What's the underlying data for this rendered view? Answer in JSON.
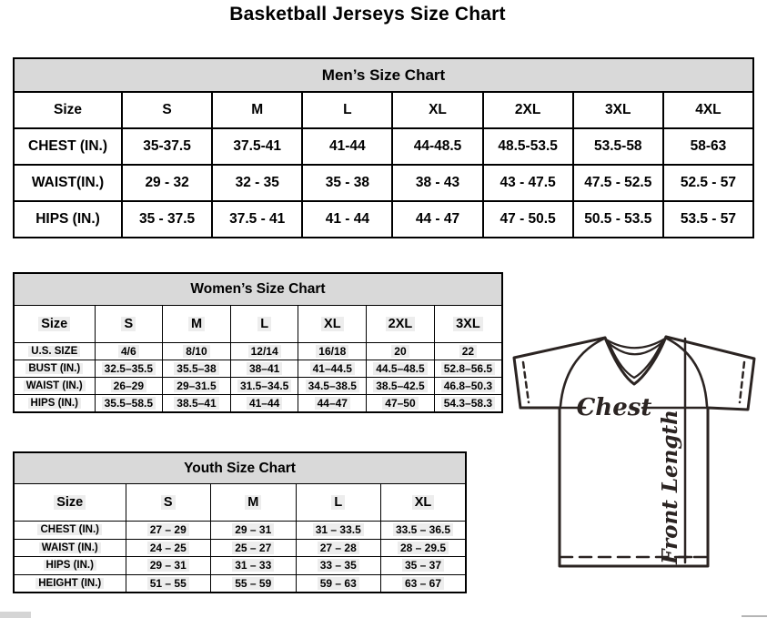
{
  "page_title": "Basketball Jerseys Size Chart",
  "colors": {
    "table_header_fill": "#d9d9d9",
    "table_border": "#000000",
    "diagram_stroke": "#2b2422",
    "text": "#000000"
  },
  "tables": {
    "mens": {
      "title": "Men’s Size Chart",
      "columns": [
        "Size",
        "S",
        "M",
        "L",
        "XL",
        "2XL",
        "3XL",
        "4XL"
      ],
      "rows": [
        {
          "label": "CHEST (IN.)",
          "values": [
            "35-37.5",
            "37.5-41",
            "41-44",
            "44-48.5",
            "48.5-53.5",
            "53.5-58",
            "58-63"
          ]
        },
        {
          "label": "WAIST(IN.)",
          "values": [
            "29 - 32",
            "32 - 35",
            "35 - 38",
            "38 - 43",
            "43 - 47.5",
            "47.5 - 52.5",
            "52.5 - 57"
          ]
        },
        {
          "label": "HIPS (IN.)",
          "values": [
            "35 - 37.5",
            "37.5 - 41",
            "41 - 44",
            "44 - 47",
            "47 - 50.5",
            "50.5 - 53.5",
            "53.5 - 57"
          ]
        }
      ]
    },
    "womens": {
      "title": "Women’s Size Chart",
      "columns": [
        "Size",
        "S",
        "M",
        "L",
        "XL",
        "2XL",
        "3XL"
      ],
      "rows": [
        {
          "label": "U.S. SIZE",
          "values": [
            "4/6",
            "8/10",
            "12/14",
            "16/18",
            "20",
            "22"
          ]
        },
        {
          "label": "BUST (IN.)",
          "values": [
            "32.5–35.5",
            "35.5–38",
            "38–41",
            "41–44.5",
            "44.5–48.5",
            "52.8–56.5"
          ]
        },
        {
          "label": "WAIST (IN.)",
          "values": [
            "26–29",
            "29–31.5",
            "31.5–34.5",
            "34.5–38.5",
            "38.5–42.5",
            "46.8–50.3"
          ]
        },
        {
          "label": "HIPS (IN.)",
          "values": [
            "35.5–58.5",
            "38.5–41",
            "41–44",
            "44–47",
            "47–50",
            "54.3–58.3"
          ]
        }
      ]
    },
    "youth": {
      "title": "Youth Size Chart",
      "columns": [
        "Size",
        "S",
        "M",
        "L",
        "XL"
      ],
      "rows": [
        {
          "label": "CHEST (IN.)",
          "values": [
            "27 – 29",
            "29 – 31",
            "31 – 33.5",
            "33.5 – 36.5"
          ]
        },
        {
          "label": "WAIST (IN.)",
          "values": [
            "24 – 25",
            "25 – 27",
            "27 – 28",
            "28 – 29.5"
          ]
        },
        {
          "label": "HIPS (IN.)",
          "values": [
            "29 – 31",
            "31 – 33",
            "33 – 35",
            "35 – 37"
          ]
        },
        {
          "label": "HEIGHT (IN.)",
          "values": [
            "51 – 55",
            "55 – 59",
            "59 – 63",
            "63 – 67"
          ]
        }
      ]
    }
  },
  "diagram": {
    "chest_label": "Chest",
    "front_length_label": "Front Length"
  }
}
